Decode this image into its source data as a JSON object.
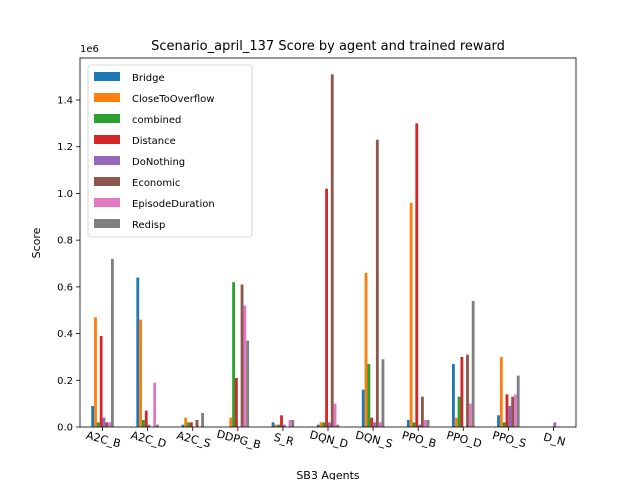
{
  "chart_data": {
    "type": "bar",
    "title": "Scenario_april_137 Score by agent and trained reward",
    "xlabel": "SB3 Agents",
    "ylabel": "Score",
    "y_multiplier_label": "1e6",
    "ylim": [
      0,
      1.58
    ],
    "yticks": [
      "0.0",
      "0.2",
      "0.4",
      "0.6",
      "0.8",
      "1.0",
      "1.2",
      "1.4"
    ],
    "legend_position": "upper-left",
    "grid": false,
    "categories": [
      "A2C_B",
      "A2C_D",
      "A2C_S",
      "DDPG_B",
      "S_R",
      "DQN_D",
      "DQN_S",
      "PPO_B",
      "PPO_D",
      "PPO_S",
      "D_N"
    ],
    "series": [
      {
        "name": "Bridge",
        "color": "#1f77b4",
        "values": [
          0.09,
          0.64,
          0.01,
          0.0,
          0.02,
          0.01,
          0.16,
          0.03,
          0.27,
          0.05,
          0.0
        ]
      },
      {
        "name": "CloseToOverflow",
        "color": "#ff7f0e",
        "values": [
          0.47,
          0.46,
          0.04,
          0.04,
          0.01,
          0.02,
          0.66,
          0.96,
          0.04,
          0.3,
          0.0
        ]
      },
      {
        "name": "combined",
        "color": "#2ca02c",
        "values": [
          0.02,
          0.03,
          0.02,
          0.62,
          0.01,
          0.02,
          0.27,
          0.02,
          0.13,
          0.02,
          0.0
        ]
      },
      {
        "name": "Distance",
        "color": "#d62728",
        "values": [
          0.39,
          0.07,
          0.02,
          0.21,
          0.05,
          1.02,
          0.04,
          1.3,
          0.3,
          0.14,
          0.0
        ]
      },
      {
        "name": "DoNothing",
        "color": "#9467bd",
        "values": [
          0.04,
          0.01,
          0.0,
          0.0,
          0.01,
          0.02,
          0.02,
          0.01,
          0.0,
          0.09,
          0.02
        ]
      },
      {
        "name": "Economic",
        "color": "#8c564b",
        "values": [
          0.02,
          0.0,
          0.03,
          0.61,
          0.0,
          1.51,
          1.23,
          0.13,
          0.31,
          0.13,
          0.0
        ]
      },
      {
        "name": "EpisodeDuration",
        "color": "#e377c2",
        "values": [
          0.02,
          0.19,
          0.0,
          0.52,
          0.03,
          0.1,
          0.02,
          0.03,
          0.1,
          0.14,
          0.0
        ]
      },
      {
        "name": "Redisp",
        "color": "#7f7f7f",
        "values": [
          0.72,
          0.01,
          0.06,
          0.37,
          0.03,
          0.01,
          0.29,
          0.03,
          0.54,
          0.22,
          0.0
        ]
      }
    ]
  }
}
